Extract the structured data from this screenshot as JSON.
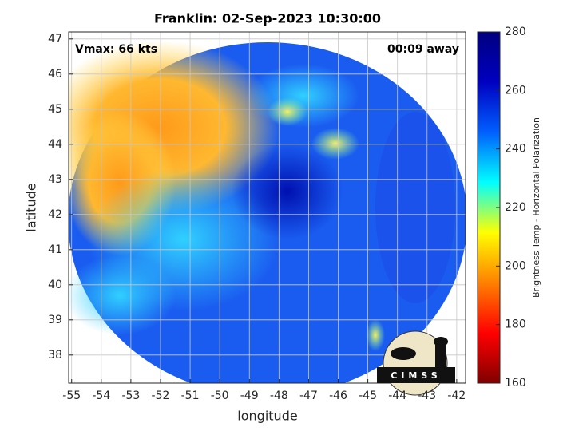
{
  "chart_data": {
    "type": "image",
    "title": "Franklin: 02-Sep-2023 10:30:00",
    "annotations": [
      "Vmax: 66 kts",
      "00:09 away"
    ],
    "xlabel": "longitude",
    "ylabel": "latitude",
    "xlim": [
      -55.1,
      -41.7
    ],
    "xticks": [
      -55,
      -54,
      -53,
      -52,
      -51,
      -50,
      -49,
      -48,
      -47,
      -46,
      -45,
      -44,
      -43,
      -42
    ],
    "ylim": [
      37.2,
      47.2
    ],
    "yticks": [
      38,
      39,
      40,
      41,
      42,
      43,
      44,
      45,
      46,
      47
    ],
    "grid": true,
    "colorbar": {
      "label": "Brightness Temp - Horizontal Polarization",
      "lim": [
        160,
        280
      ],
      "ticks": [
        160,
        180,
        200,
        220,
        240,
        260,
        280
      ],
      "colormap": [
        "#800000",
        "#ff0000",
        "#ff8000",
        "#ffff00",
        "#00ffff",
        "#0060ff",
        "#0000c0",
        "#000080"
      ]
    },
    "logo_text": "CIMSS"
  }
}
